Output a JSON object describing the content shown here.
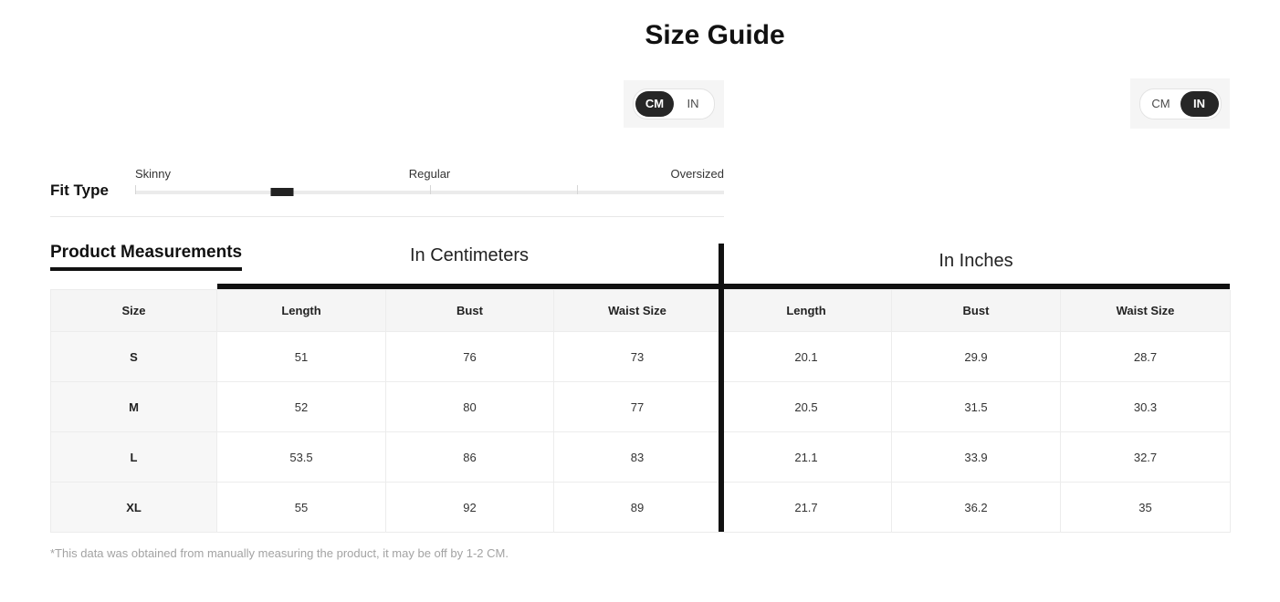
{
  "title": "Size Guide",
  "colors": {
    "accent_dark": "#262626",
    "toggle_bg": "#f5f5f5",
    "table_border": "#ececec",
    "header_bg": "#f5f5f5",
    "footnote_gray": "#a3a3a3"
  },
  "unit_toggles": {
    "cm_label": "CM",
    "in_label": "IN",
    "left_selected": "CM",
    "right_selected": "IN"
  },
  "fit_type": {
    "label": "Fit Type",
    "options": [
      "Skinny",
      "Regular",
      "Oversized"
    ],
    "thumb_position_percent": 25,
    "tick_positions_percent": [
      0,
      50,
      75
    ]
  },
  "measurements": {
    "heading": "Product Measurements",
    "cm_section_title": "In Centimeters",
    "in_section_title": "In Inches",
    "columns": [
      "Size",
      "Length",
      "Bust",
      "Waist Size",
      "Length",
      "Bust",
      "Waist Size"
    ],
    "rows": [
      {
        "size": "S",
        "values": [
          "51",
          "76",
          "73",
          "20.1",
          "29.9",
          "28.7"
        ]
      },
      {
        "size": "M",
        "values": [
          "52",
          "80",
          "77",
          "20.5",
          "31.5",
          "30.3"
        ]
      },
      {
        "size": "L",
        "values": [
          "53.5",
          "86",
          "83",
          "21.1",
          "33.9",
          "32.7"
        ]
      },
      {
        "size": "XL",
        "values": [
          "55",
          "92",
          "89",
          "21.7",
          "36.2",
          "35"
        ]
      }
    ]
  },
  "footnote": "*This data was obtained from manually measuring the product, it may be off by 1-2 CM."
}
